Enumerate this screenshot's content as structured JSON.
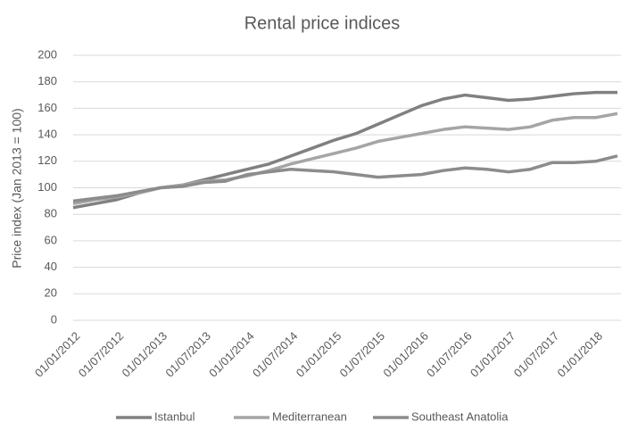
{
  "chart_data": {
    "type": "line",
    "title": "Rental price indices",
    "ylabel": "Price index (Jan 2013 = 100)",
    "categories": [
      "01/01/2012",
      null,
      "01/07/2012",
      null,
      "01/01/2013",
      null,
      "01/07/2013",
      null,
      "01/01/2014",
      null,
      "01/07/2014",
      null,
      "01/01/2015",
      null,
      "01/07/2015",
      null,
      "01/01/2016",
      null,
      "01/07/2016",
      null,
      "01/01/2017",
      null,
      "01/07/2017",
      null,
      "01/01/2018",
      null
    ],
    "series": [
      {
        "name": "Istanbul",
        "color": "#808080",
        "values": [
          85,
          88,
          91,
          96,
          100,
          102,
          106,
          110,
          114,
          118,
          124,
          130,
          136,
          141,
          148,
          155,
          162,
          167,
          170,
          168,
          166,
          167,
          169,
          171,
          172,
          172
        ]
      },
      {
        "name": "Mediterranean",
        "color": "#a5a5a5",
        "values": [
          88,
          91,
          93,
          96,
          100,
          102,
          105,
          106,
          109,
          113,
          118,
          122,
          126,
          130,
          135,
          138,
          141,
          144,
          146,
          145,
          144,
          146,
          151,
          153,
          153,
          156
        ]
      },
      {
        "name": "Southeast Anatolia",
        "color": "#8c8c8c",
        "values": [
          90,
          92,
          94,
          97,
          100,
          101,
          104,
          105,
          110,
          112,
          114,
          113,
          112,
          110,
          108,
          109,
          110,
          113,
          115,
          114,
          112,
          114,
          119,
          119,
          120,
          124
        ]
      }
    ],
    "ylim": [
      0,
      200
    ],
    "yticks": [
      0,
      20,
      40,
      60,
      80,
      100,
      120,
      140,
      160,
      180,
      200
    ],
    "grid": true,
    "legend": "bottom"
  }
}
